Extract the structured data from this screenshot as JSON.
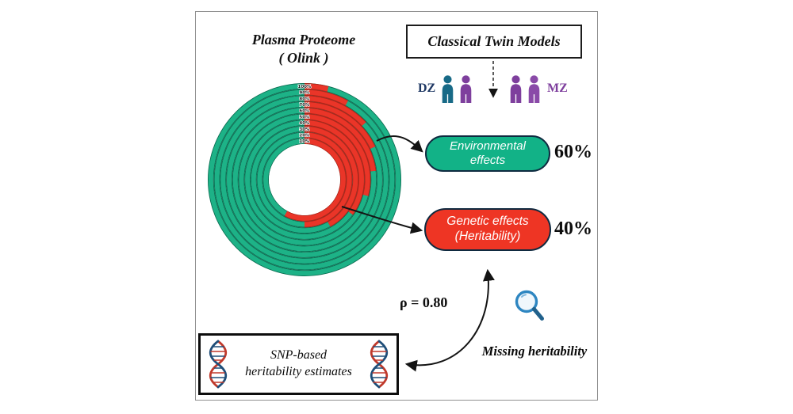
{
  "header": {
    "proteome_line1": "Plasma Proteome",
    "proteome_line2": "( Olink )",
    "twin_models": "Classical Twin Models"
  },
  "twins": {
    "dz": "DZ",
    "mz": "MZ",
    "dz_color": "#1f3864",
    "mz_color": "#7e3f9d",
    "person_colors": [
      "#186a87",
      "#7e3f9d"
    ]
  },
  "effects": {
    "environmental": {
      "line1": "Environmental",
      "line2": "effects",
      "value": "60%",
      "color": "#12b287"
    },
    "genetic": {
      "line1": "Genetic effects",
      "line2": "(Heritability)",
      "value": "40%",
      "color": "#ee3524"
    }
  },
  "correlation": {
    "text": "ρ = 0.80"
  },
  "missing": {
    "label": "Missing heritability"
  },
  "snp": {
    "line1": "SNP-based",
    "line2": "heritability estimates"
  },
  "icons": {
    "magnifier": "magnifying-glass",
    "dna": "dna-double-helix",
    "twin_person": "person-silhouette",
    "magnifier_color": "#2e86c1"
  },
  "chart_data": {
    "type": "concentric-ring",
    "title": "Plasma Proteome (Olink)",
    "description": "Concentric rings labeled 100% (outer) to 10% (inner); red arc from top clockwise = genetic effects (heritability) share, green = environmental effects share; white center hole",
    "ring_labels": [
      "100%",
      "90%",
      "80%",
      "70%",
      "60%",
      "50%",
      "40%",
      "30%",
      "20%",
      "10%"
    ],
    "red_fraction_by_ring": [
      0.04,
      0.08,
      0.13,
      0.18,
      0.23,
      0.29,
      0.35,
      0.42,
      0.5,
      0.58
    ],
    "legend": {
      "green": "Environmental effects (60%)",
      "red": "Genetic effects / Heritability (40%)"
    },
    "colors": {
      "green": "#1db287",
      "green_dark": "#0a6b50",
      "red": "#ea3528",
      "red_dark": "#b02419"
    }
  }
}
